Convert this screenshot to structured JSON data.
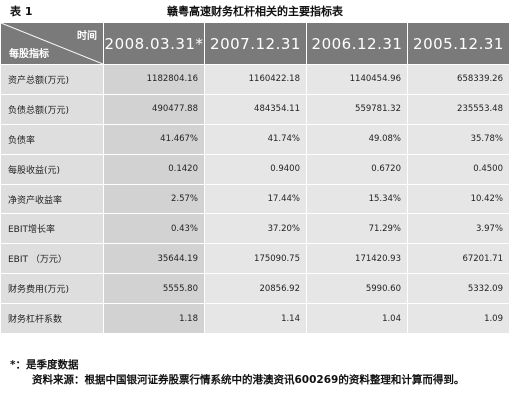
{
  "caption": {
    "table_no": "表 1",
    "title": "赣粤高速财务杠杆相关的主要指标表"
  },
  "header": {
    "corner_top": "时间",
    "corner_bottom": "每股指标",
    "dates": [
      "2008.03.31*",
      "2007.12.31",
      "2006.12.31",
      "2005.12.31"
    ]
  },
  "rows": [
    {
      "label": "资产总额(万元)",
      "values": [
        "1182804.16",
        "1160422.18",
        "1140454.96",
        "658339.26"
      ]
    },
    {
      "label": "负债总额(万元)",
      "values": [
        "490477.88",
        "484354.11",
        "559781.32",
        "235553.48"
      ]
    },
    {
      "label": "负债率",
      "values": [
        "41.467%",
        "41.74%",
        "49.08%",
        "35.78%"
      ]
    },
    {
      "label": "每股收益(元)",
      "values": [
        "0.1420",
        "0.9400",
        "0.6720",
        "0.4500"
      ]
    },
    {
      "label": "净资产收益率",
      "values": [
        "2.57%",
        "17.44%",
        "15.34%",
        "10.42%"
      ]
    },
    {
      "label": "EBIT增长率",
      "values": [
        "0.43%",
        "37.20%",
        "71.29%",
        "3.97%"
      ]
    },
    {
      "label": "EBIT （万元）",
      "values": [
        "35644.19",
        "175090.75",
        "171420.93",
        "67201.71"
      ]
    },
    {
      "label": "财务费用(万元)",
      "values": [
        "5555.80",
        "20856.92",
        "5990.60",
        "5332.09"
      ]
    },
    {
      "label": "财务杠杆系数",
      "values": [
        "1.18",
        "1.14",
        "1.04",
        "1.09"
      ]
    }
  ],
  "notes": {
    "star": "*：是季度数据",
    "source": "资料来源：根据中国银河证券股票行情系统中的港澳资讯600269的资料整理和计算而得到。"
  }
}
